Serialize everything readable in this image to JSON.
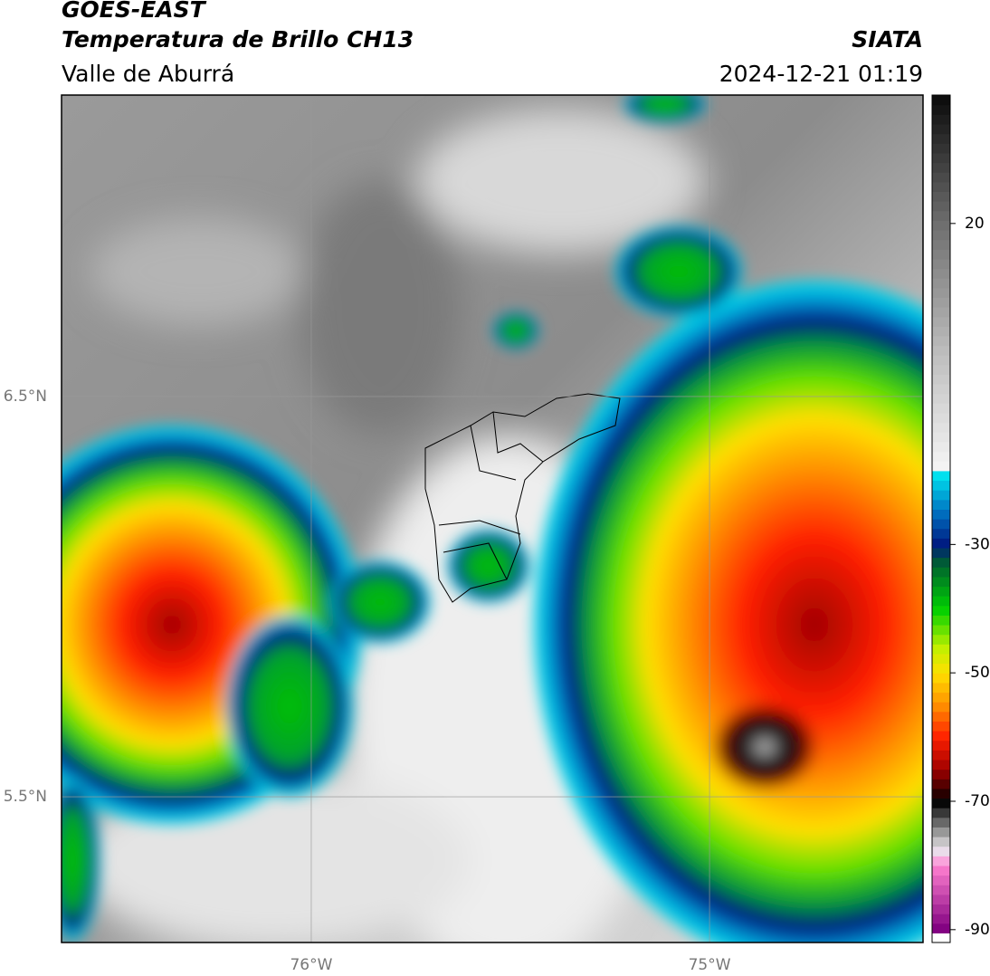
{
  "header": {
    "title": "GOES-EAST",
    "subtitle": "Temperatura de Brillo CH13",
    "source": "SIATA",
    "region": "Valle de Aburrá",
    "timestamp": "2024-12-21 01:19"
  },
  "map": {
    "lonlim": [
      -76.627,
      -74.464
    ],
    "latlim": [
      5.136,
      7.253
    ],
    "lonticks": [
      {
        "value": -76,
        "label": "76°W"
      },
      {
        "value": -75,
        "label": "75°W"
      }
    ],
    "latticks": [
      {
        "value": 6.5,
        "label": "6.5°N"
      },
      {
        "value": 5.5,
        "label": "5.5°N"
      }
    ],
    "grid": true
  },
  "colorbar": {
    "clim": [
      -92,
      40
    ],
    "ticks": [
      20,
      -30,
      -50,
      -70,
      -90
    ],
    "colormap": [
      [
        40,
        "#0a0a0a"
      ],
      [
        20,
        "#6e6e6e"
      ],
      [
        0,
        "#bdbdbd"
      ],
      [
        -18,
        "#f4f4f4"
      ],
      [
        -19,
        "#00e5f0"
      ],
      [
        -25,
        "#0070c0"
      ],
      [
        -30,
        "#001a80"
      ],
      [
        -33,
        "#006030"
      ],
      [
        -40,
        "#00d000"
      ],
      [
        -46,
        "#c0f000"
      ],
      [
        -50,
        "#ffe000"
      ],
      [
        -55,
        "#ff9000"
      ],
      [
        -60,
        "#ff2000"
      ],
      [
        -65,
        "#a00000"
      ],
      [
        -69,
        "#200000"
      ],
      [
        -70,
        "#000000"
      ],
      [
        -76,
        "#c0c0c0"
      ],
      [
        -78,
        "#f0e0f0"
      ],
      [
        -80,
        "#ff80d0"
      ],
      [
        -90,
        "#800080"
      ],
      [
        -91,
        "#ffffff"
      ],
      [
        -92,
        "#ffffff"
      ]
    ]
  }
}
